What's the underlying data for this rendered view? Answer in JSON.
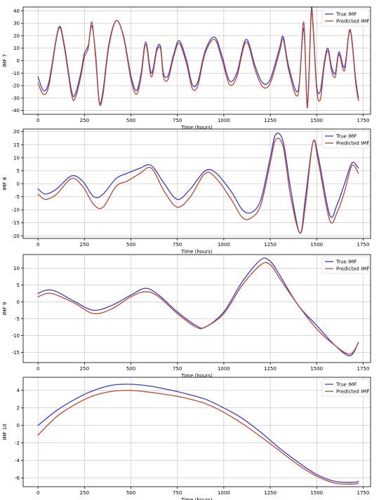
{
  "colors": {
    "true": "#3b3bd6",
    "predicted": "#c0452e"
  },
  "chart_data": [
    {
      "type": "line",
      "xlabel": "Time (hours)",
      "ylabel": "IMF 7",
      "xlim": [
        -80,
        1790
      ],
      "ylim": [
        -43,
        43
      ],
      "xticks": [
        0,
        250,
        500,
        750,
        1000,
        1250,
        1500,
        1750
      ],
      "yticks": [
        -40,
        -30,
        -20,
        -10,
        0,
        10,
        20,
        30,
        40
      ],
      "grid": true,
      "legend": "top-right",
      "series": [
        {
          "name": "True IMF",
          "color": "#3b3bd6",
          "x": [
            0,
            30,
            60,
            110,
            140,
            180,
            200,
            230,
            250,
            270,
            290,
            310,
            330,
            350,
            380,
            420,
            460,
            500,
            530,
            555,
            580,
            610,
            640,
            660,
            675,
            700,
            730,
            760,
            800,
            830,
            860,
            900,
            950,
            990,
            1030,
            1070,
            1120,
            1170,
            1210,
            1250,
            1300,
            1320,
            1350,
            1400,
            1430,
            1450,
            1470,
            1480,
            1500,
            1520,
            1540,
            1560,
            1580,
            1600,
            1620,
            1650,
            1680,
            1710,
            1725
          ],
          "y": [
            -13,
            -24,
            -16,
            26,
            14,
            -24,
            -27,
            -10,
            6,
            12,
            28,
            5,
            -33,
            -24,
            12,
            32,
            20,
            -12,
            -24,
            -10,
            15,
            -10,
            10,
            11,
            -10,
            -12,
            5,
            16,
            0,
            -19,
            -17,
            8,
            19,
            4,
            -16,
            -10,
            17,
            -5,
            -18,
            -15,
            10,
            19,
            -5,
            -24,
            26,
            -35,
            38,
            30,
            -20,
            -24,
            -2,
            10,
            -5,
            -10,
            7,
            -5,
            25,
            -15,
            -30
          ],
          "type": "line"
        },
        {
          "name": "Predicted IMF",
          "color": "#c0452e",
          "x": [
            0,
            30,
            60,
            110,
            140,
            180,
            200,
            230,
            250,
            270,
            290,
            310,
            330,
            350,
            380,
            420,
            460,
            500,
            530,
            555,
            580,
            610,
            640,
            660,
            675,
            700,
            730,
            760,
            800,
            830,
            860,
            900,
            950,
            990,
            1030,
            1070,
            1120,
            1170,
            1210,
            1250,
            1300,
            1320,
            1350,
            1400,
            1430,
            1450,
            1470,
            1480,
            1500,
            1520,
            1540,
            1560,
            1580,
            1600,
            1620,
            1650,
            1680,
            1710,
            1725
          ],
          "y": [
            -18,
            -27,
            -19,
            25,
            12,
            -27,
            -30,
            -13,
            3,
            10,
            31,
            2,
            -34,
            -27,
            10,
            32,
            19,
            -15,
            -27,
            -13,
            13,
            -13,
            8,
            9,
            -13,
            -15,
            3,
            14,
            -3,
            -22,
            -20,
            6,
            17,
            1,
            -19,
            -13,
            15,
            -8,
            -21,
            -18,
            7,
            17,
            -8,
            -27,
            31,
            -38,
            36,
            28,
            -23,
            -31,
            -5,
            8,
            -8,
            -13,
            5,
            -8,
            24,
            -18,
            -32
          ],
          "type": "line"
        }
      ]
    },
    {
      "type": "line",
      "xlabel": "Time (hours)",
      "ylabel": "IMF 8",
      "xlim": [
        -80,
        1790
      ],
      "ylim": [
        -21,
        21
      ],
      "xticks": [
        0,
        250,
        500,
        750,
        1000,
        1250,
        1500,
        1750
      ],
      "yticks": [
        -20,
        -15,
        -10,
        -5,
        0,
        5,
        10,
        15,
        20
      ],
      "grid": true,
      "legend": "top-right",
      "series": [
        {
          "name": "True IMF",
          "color": "#3b3bd6",
          "x": [
            0,
            40,
            100,
            180,
            240,
            300,
            350,
            420,
            480,
            550,
            610,
            680,
            750,
            820,
            900,
            960,
            1040,
            1100,
            1150,
            1200,
            1250,
            1280,
            1320,
            1360,
            1410,
            1440,
            1480,
            1510,
            1570,
            1610,
            1650,
            1690,
            1725
          ],
          "y": [
            -2,
            -4,
            -2,
            3,
            1,
            -5,
            -4,
            2,
            4,
            6,
            7,
            0,
            -6,
            -2,
            5,
            4,
            -3,
            -10,
            -11,
            -6,
            10,
            19,
            16,
            -2,
            -19,
            -5,
            16,
            10,
            -12,
            -8,
            0,
            8,
            6
          ],
          "type": "line"
        },
        {
          "name": "Predicted IMF",
          "color": "#c0452e",
          "x": [
            0,
            40,
            100,
            180,
            240,
            300,
            350,
            420,
            480,
            550,
            610,
            680,
            750,
            820,
            900,
            960,
            1040,
            1100,
            1150,
            1200,
            1250,
            1280,
            1320,
            1360,
            1410,
            1440,
            1480,
            1510,
            1570,
            1610,
            1650,
            1690,
            1725
          ],
          "y": [
            -4,
            -6,
            -4,
            2,
            -1,
            -8,
            -9,
            -1,
            1,
            4,
            6,
            -3,
            -9,
            -5,
            4,
            2,
            -6,
            -13,
            -13,
            -8,
            8,
            17,
            14,
            -5,
            -19,
            -8,
            16,
            8,
            -14,
            -11,
            -3,
            7,
            4
          ],
          "type": "line"
        }
      ]
    },
    {
      "type": "line",
      "xlabel": "Time (hours)",
      "ylabel": "IMF 9",
      "xlim": [
        -80,
        1790
      ],
      "ylim": [
        -18,
        14
      ],
      "xticks": [
        0,
        250,
        500,
        750,
        1000,
        1250,
        1500,
        1750
      ],
      "yticks": [
        -15,
        -10,
        -5,
        0,
        5,
        10
      ],
      "grid": true,
      "legend": "top-right",
      "series": [
        {
          "name": "True IMF",
          "color": "#3b3bd6",
          "x": [
            0,
            50,
            100,
            200,
            300,
            400,
            500,
            580,
            650,
            750,
            850,
            900,
            1000,
            1100,
            1200,
            1250,
            1300,
            1400,
            1500,
            1600,
            1680,
            1725
          ],
          "y": [
            2.5,
            3.5,
            3.0,
            0,
            -2.5,
            -1,
            2,
            4,
            2,
            -3,
            -7,
            -7.5,
            -3,
            6,
            12.5,
            12,
            8,
            -1,
            -7,
            -13,
            -16,
            -12
          ],
          "type": "line"
        },
        {
          "name": "Predicted IMF",
          "color": "#c0452e",
          "x": [
            0,
            50,
            100,
            200,
            300,
            400,
            500,
            580,
            650,
            750,
            850,
            900,
            1000,
            1100,
            1200,
            1250,
            1300,
            1400,
            1500,
            1600,
            1680,
            1725
          ],
          "y": [
            1.5,
            2.5,
            2.0,
            -0.5,
            -3.5,
            -2,
            1.5,
            3,
            1.5,
            -3.5,
            -7.5,
            -7.5,
            -3.5,
            5,
            11,
            11,
            7,
            -1,
            -8,
            -13,
            -15.5,
            -12
          ],
          "type": "line"
        }
      ]
    },
    {
      "type": "line",
      "xlabel": "Time (hours)",
      "ylabel": "IMF 10",
      "xlim": [
        -80,
        1790
      ],
      "ylim": [
        -7,
        5.5
      ],
      "xticks": [
        0,
        250,
        500,
        750,
        1000,
        1250,
        1500,
        1750
      ],
      "yticks": [
        -6,
        -4,
        -2,
        0,
        2,
        4
      ],
      "grid": true,
      "legend": "top-right",
      "series": [
        {
          "name": "True IMF",
          "color": "#3b3bd6",
          "x": [
            0,
            100,
            200,
            300,
            400,
            500,
            600,
            700,
            800,
            900,
            1000,
            1100,
            1200,
            1300,
            1400,
            1500,
            1600,
            1700,
            1725
          ],
          "y": [
            0,
            1.7,
            3.0,
            4.0,
            4.6,
            4.7,
            4.5,
            4.1,
            3.6,
            3.0,
            2.0,
            0.8,
            -0.8,
            -2.6,
            -4.2,
            -5.6,
            -6.4,
            -6.5,
            -6.4
          ],
          "type": "line"
        },
        {
          "name": "Predicted IMF",
          "color": "#c0452e",
          "x": [
            0,
            100,
            200,
            300,
            400,
            500,
            600,
            700,
            800,
            900,
            1000,
            1100,
            1200,
            1300,
            1400,
            1500,
            1600,
            1700,
            1725
          ],
          "y": [
            -1.1,
            1.0,
            2.4,
            3.4,
            3.9,
            4.0,
            3.8,
            3.5,
            3.1,
            2.5,
            1.5,
            0.2,
            -1.3,
            -2.9,
            -4.5,
            -5.8,
            -6.6,
            -6.7,
            -6.6
          ],
          "type": "line"
        }
      ]
    }
  ]
}
